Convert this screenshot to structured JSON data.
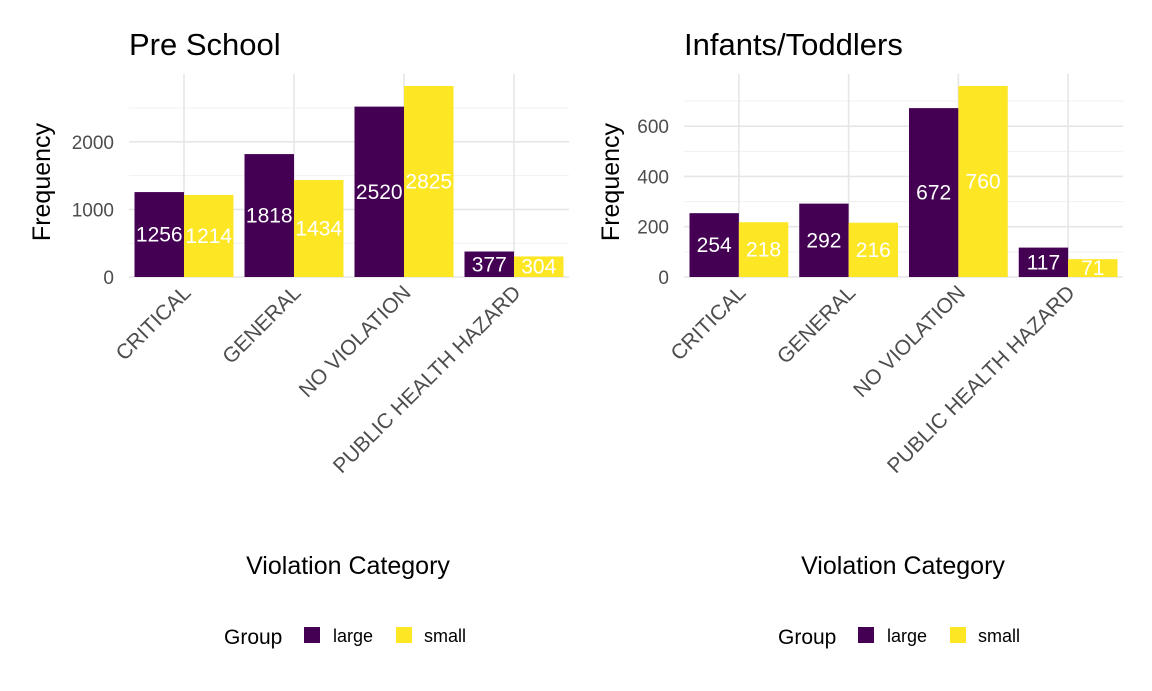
{
  "chart_data": [
    {
      "type": "bar",
      "title": "Pre School",
      "xlabel": "Violation Category",
      "ylabel": "Frequency",
      "categories": [
        "CRITICAL",
        "GENERAL",
        "NO VIOLATION",
        "PUBLIC HEALTH HAZARD"
      ],
      "series": [
        {
          "name": "large",
          "values": [
            1256,
            1818,
            2520,
            377
          ],
          "color": "#440154"
        },
        {
          "name": "small",
          "values": [
            1214,
            1434,
            2825,
            304
          ],
          "color": "#FDE725"
        }
      ],
      "value_labels": [
        [
          "1256",
          "1818",
          "2520",
          "377"
        ],
        [
          "1214",
          "1434",
          "2825",
          "304"
        ]
      ],
      "yticks": [
        0,
        1000,
        2000
      ],
      "ytick_labels": [
        "0",
        "1000",
        "2000"
      ],
      "ylim": [
        0,
        2825
      ],
      "grid": true,
      "legend_position": "bottom",
      "legend_title": "Group"
    },
    {
      "type": "bar",
      "title": "Infants/Toddlers",
      "xlabel": "Violation Category",
      "ylabel": "Frequency",
      "categories": [
        "CRITICAL",
        "GENERAL",
        "NO VIOLATION",
        "PUBLIC HEALTH HAZARD"
      ],
      "series": [
        {
          "name": "large",
          "values": [
            254,
            292,
            672,
            117
          ],
          "color": "#440154"
        },
        {
          "name": "small",
          "values": [
            218,
            216,
            760,
            71
          ],
          "color": "#FDE725"
        }
      ],
      "value_labels": [
        [
          "254",
          "292",
          "672",
          "117"
        ],
        [
          "218",
          "216",
          "760",
          "71"
        ]
      ],
      "yticks": [
        0,
        200,
        400,
        600
      ],
      "ytick_labels": [
        "0",
        "200",
        "400",
        "600"
      ],
      "ylim": [
        0,
        760
      ],
      "grid": true,
      "legend_position": "bottom",
      "legend_title": "Group"
    }
  ]
}
